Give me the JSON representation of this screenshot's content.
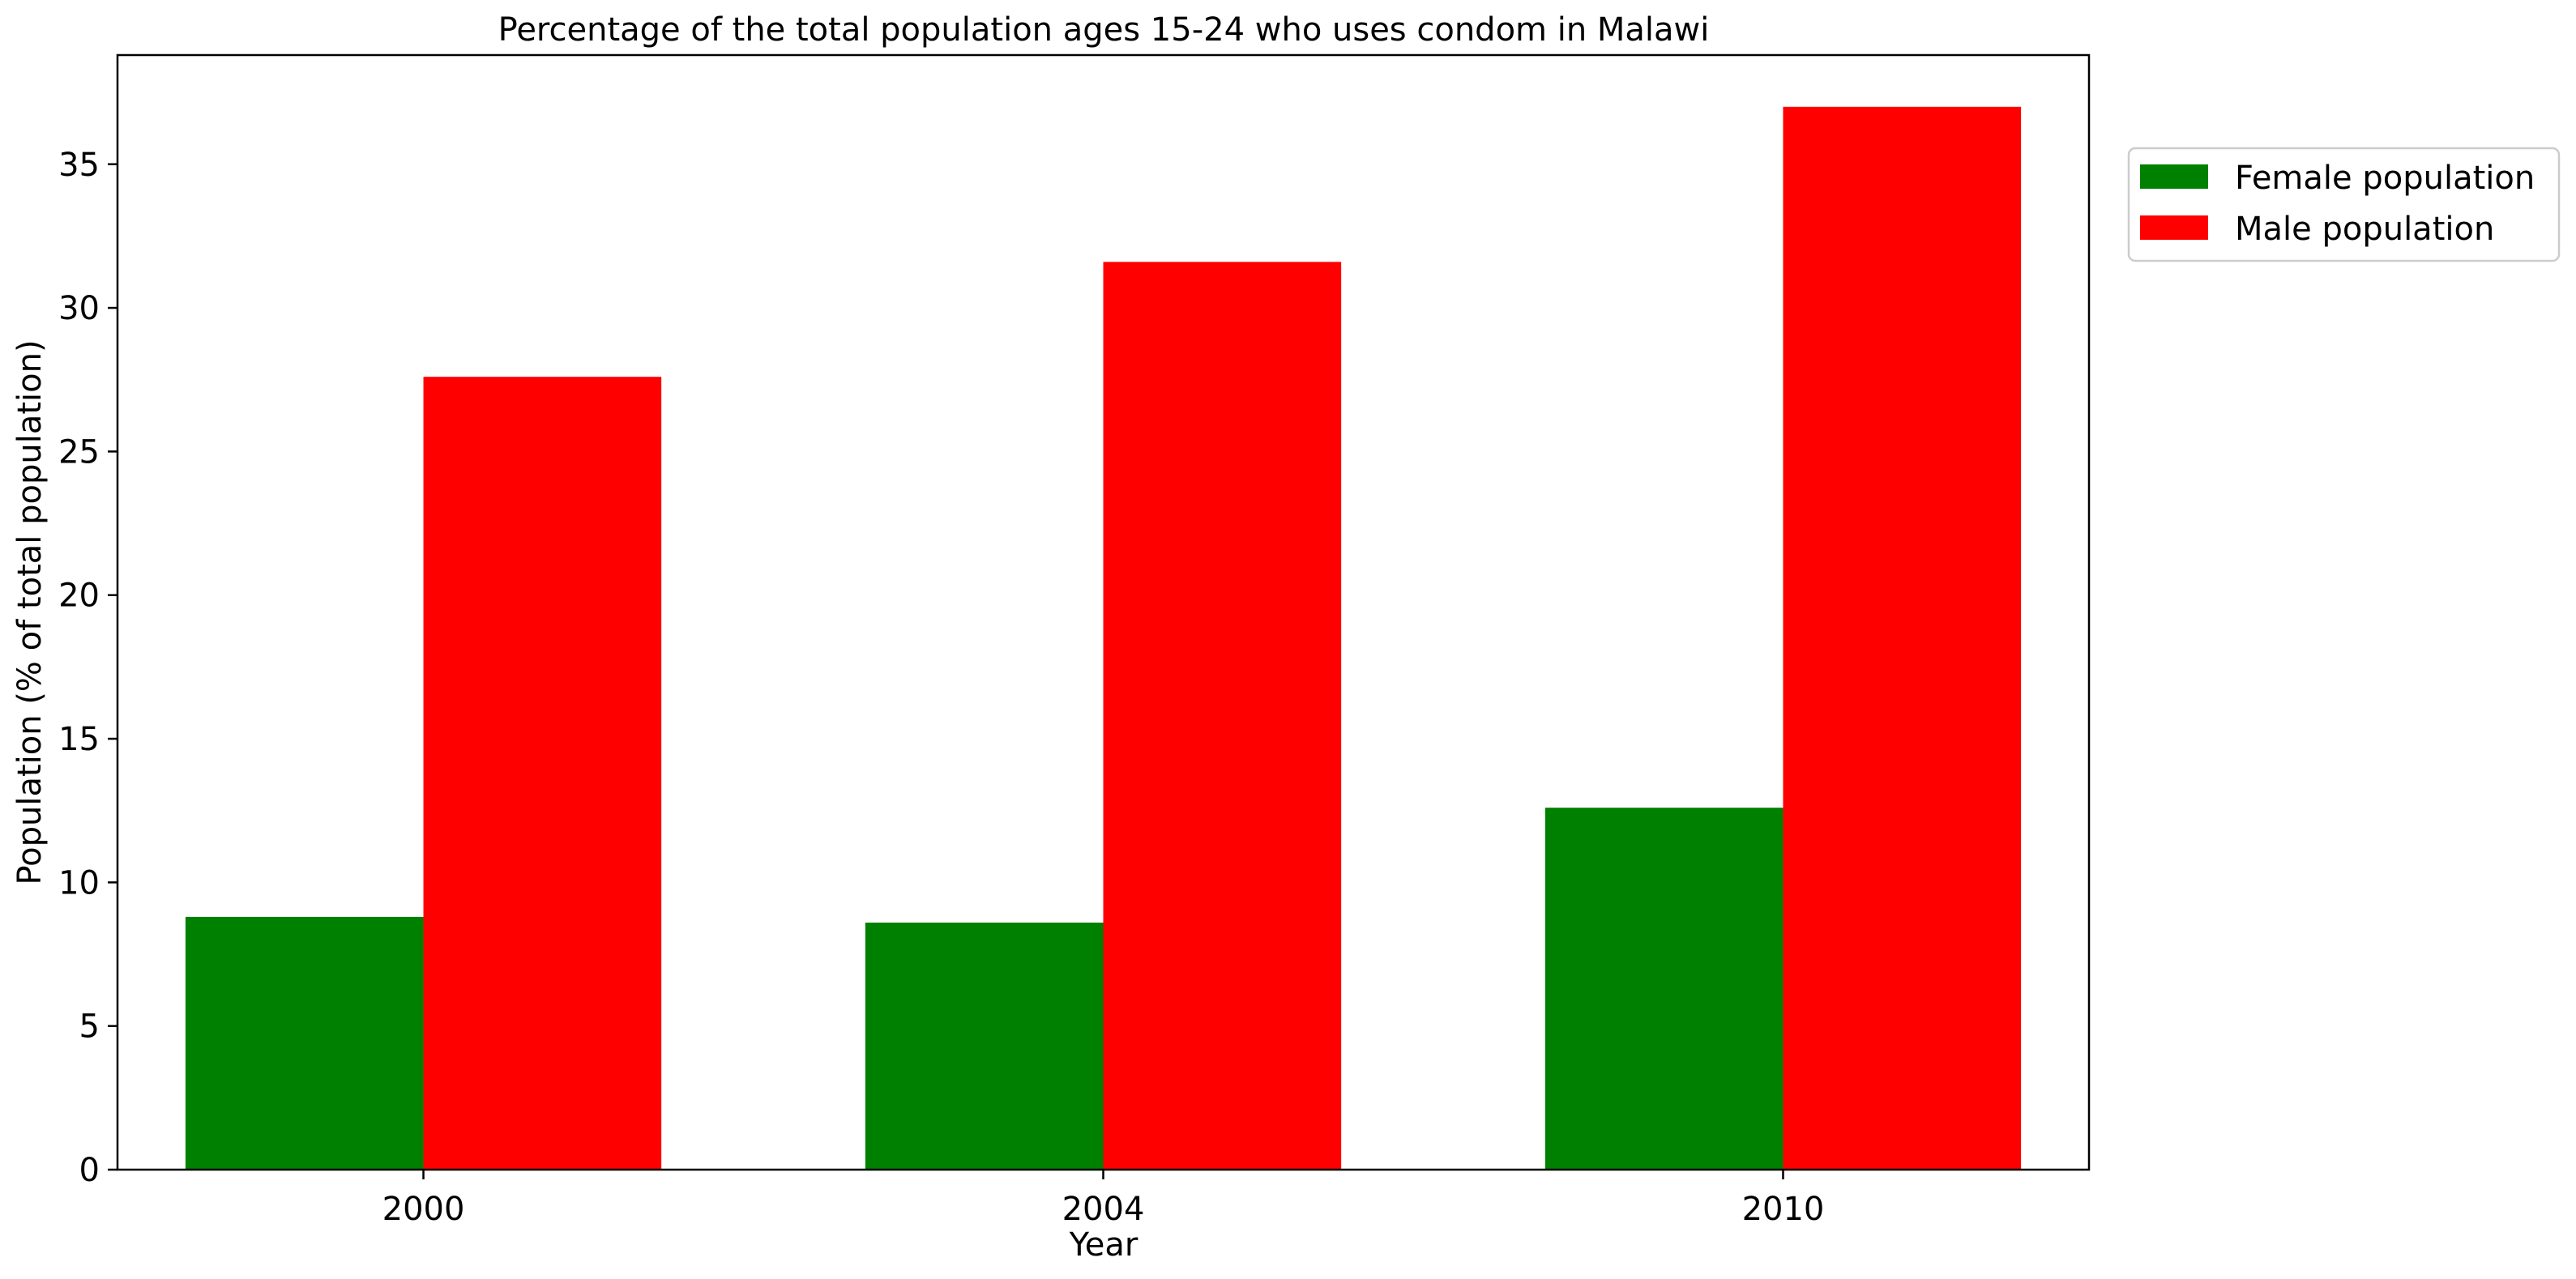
{
  "chart_data": {
    "type": "bar",
    "title": "Percentage of the total population ages 15-24 who uses condom in Malawi",
    "xlabel": "Year",
    "ylabel": "Population (% of total population)",
    "categories": [
      "2000",
      "2004",
      "2010"
    ],
    "series": [
      {
        "name": "Female population",
        "color": "#008000",
        "values": [
          8.8,
          8.6,
          12.6
        ]
      },
      {
        "name": "Male population",
        "color": "#ff0000",
        "values": [
          27.6,
          31.6,
          37.0
        ]
      }
    ],
    "ylim": [
      0,
      38.8
    ],
    "yticks": [
      0,
      5,
      10,
      15,
      20,
      25,
      30,
      35
    ],
    "grid": false,
    "legend_position": "outside-top-right"
  }
}
